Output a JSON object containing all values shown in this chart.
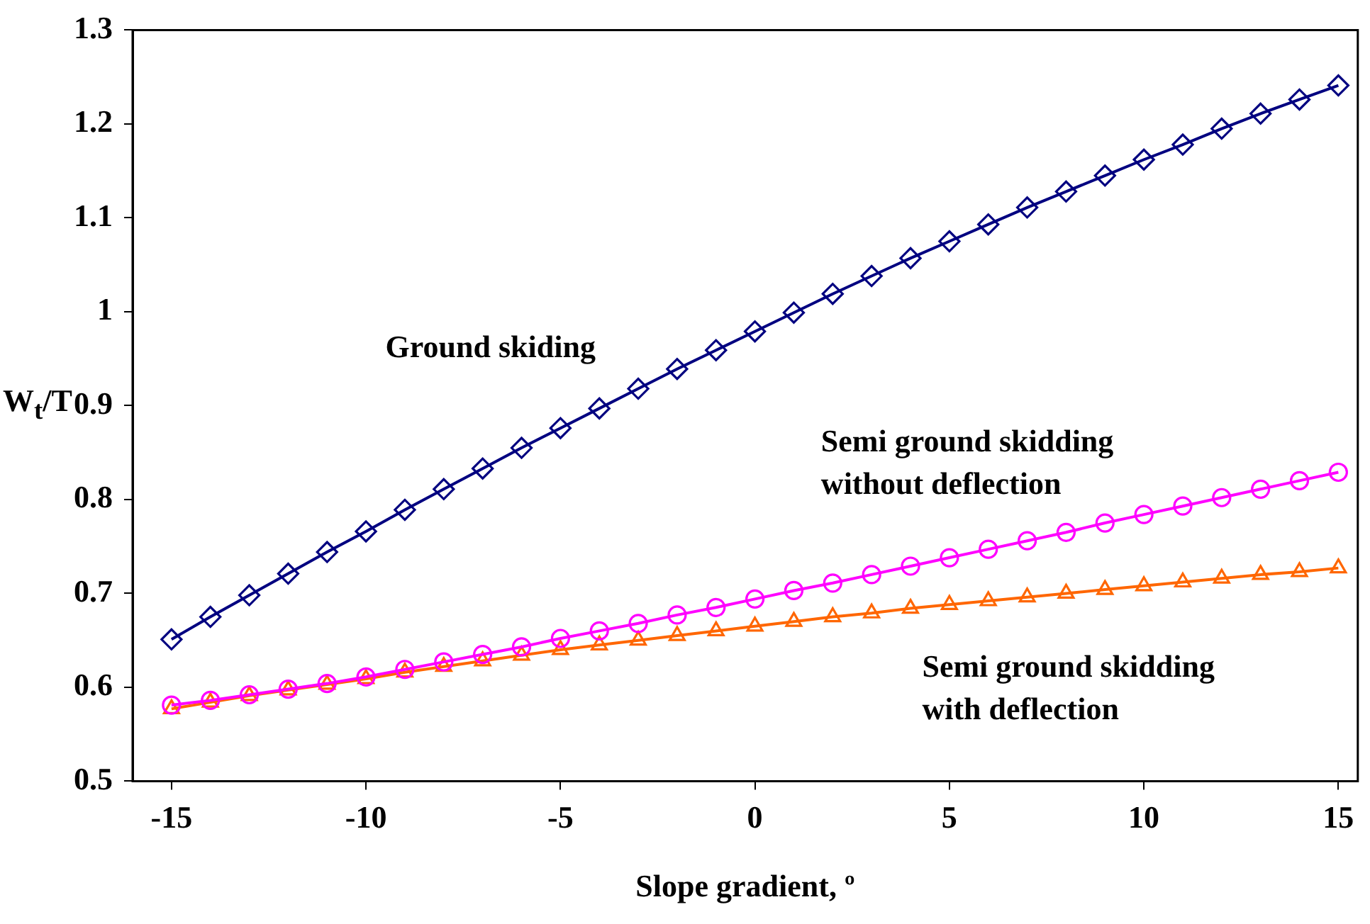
{
  "chart_data": {
    "type": "line",
    "xlabel": "Slope gradient, º",
    "ylabel": "W$_{t}$/T",
    "x": [
      -15,
      -14,
      -13,
      -12,
      -11,
      -10,
      -9,
      -8,
      -7,
      -6,
      -5,
      -4,
      -3,
      -2,
      -1,
      0,
      1,
      2,
      3,
      4,
      5,
      6,
      7,
      8,
      9,
      10,
      11,
      12,
      13,
      14,
      15
    ],
    "xlim": [
      -16,
      15.5
    ],
    "xticks": [
      -15,
      -10,
      -5,
      0,
      5,
      10,
      15
    ],
    "ylim": [
      0.5,
      1.3
    ],
    "yticks": [
      0.5,
      0.6,
      0.7,
      0.8,
      0.9,
      1,
      1.1,
      1.2,
      1.3
    ],
    "grid": false,
    "legend": false,
    "line_style": "solid",
    "series": [
      {
        "name": "Ground skiding",
        "color": "#000080",
        "marker": "diamond",
        "values": [
          0.651,
          0.675,
          0.698,
          0.721,
          0.744,
          0.766,
          0.789,
          0.811,
          0.833,
          0.855,
          0.876,
          0.897,
          0.918,
          0.939,
          0.959,
          0.979,
          0.999,
          1.019,
          1.038,
          1.057,
          1.075,
          1.093,
          1.111,
          1.128,
          1.145,
          1.162,
          1.178,
          1.195,
          1.211,
          1.226,
          1.241
        ]
      },
      {
        "name": "Semi ground skidding without deflection",
        "color": "#ff00ff",
        "marker": "circle",
        "values": [
          0.581,
          0.586,
          0.592,
          0.598,
          0.604,
          0.611,
          0.619,
          0.627,
          0.635,
          0.643,
          0.652,
          0.66,
          0.668,
          0.677,
          0.685,
          0.694,
          0.703,
          0.711,
          0.72,
          0.729,
          0.738,
          0.747,
          0.756,
          0.765,
          0.775,
          0.784,
          0.793,
          0.802,
          0.811,
          0.82,
          0.829
        ]
      },
      {
        "name": "Semi ground skidding with deflection",
        "color": "#ff6600",
        "marker": "triangle",
        "values": [
          0.577,
          0.584,
          0.591,
          0.597,
          0.603,
          0.609,
          0.616,
          0.622,
          0.628,
          0.634,
          0.64,
          0.645,
          0.65,
          0.655,
          0.66,
          0.665,
          0.67,
          0.675,
          0.679,
          0.684,
          0.688,
          0.692,
          0.696,
          0.7,
          0.704,
          0.708,
          0.712,
          0.716,
          0.72,
          0.723,
          0.727
        ]
      }
    ]
  }
}
